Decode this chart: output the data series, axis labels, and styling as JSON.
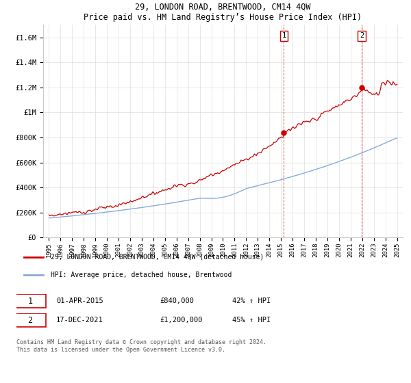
{
  "title": "29, LONDON ROAD, BRENTWOOD, CM14 4QW",
  "subtitle": "Price paid vs. HM Land Registry’s House Price Index (HPI)",
  "ylabel_ticks": [
    "£0",
    "£200K",
    "£400K",
    "£600K",
    "£800K",
    "£1M",
    "£1.2M",
    "£1.4M",
    "£1.6M"
  ],
  "ytick_values": [
    0,
    200000,
    400000,
    600000,
    800000,
    1000000,
    1200000,
    1400000,
    1600000
  ],
  "ylim": [
    0,
    1700000
  ],
  "xlim_start": 1994.5,
  "xlim_end": 2025.5,
  "transaction1": {
    "date_num": 2015.25,
    "price": 840000,
    "label": "1"
  },
  "transaction2": {
    "date_num": 2021.97,
    "price": 1200000,
    "label": "2"
  },
  "line_color_property": "#cc0000",
  "line_color_hpi": "#88aadd",
  "legend_property": "29, LONDON ROAD, BRENTWOOD, CM14 4QW (detached house)",
  "legend_hpi": "HPI: Average price, detached house, Brentwood",
  "table_row1": [
    "1",
    "01-APR-2015",
    "£840,000",
    "42% ↑ HPI"
  ],
  "table_row2": [
    "2",
    "17-DEC-2021",
    "£1,200,000",
    "45% ↑ HPI"
  ],
  "footer": "Contains HM Land Registry data © Crown copyright and database right 2024.\nThis data is licensed under the Open Government Licence v3.0.",
  "background_color": "#ffffff",
  "grid_color": "#dddddd"
}
